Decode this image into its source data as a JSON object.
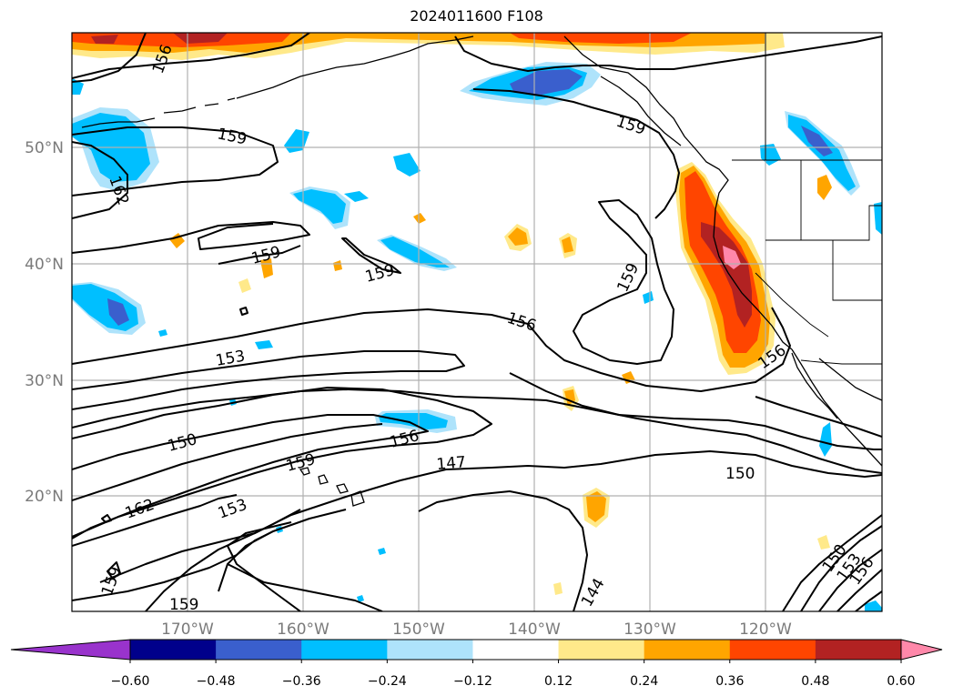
{
  "title": "2024011600 F108",
  "map": {
    "lat_labels": [
      "50°N",
      "40°N",
      "30°N",
      "20°N"
    ],
    "lon_labels": [
      "170°W",
      "160°W",
      "150°W",
      "140°W",
      "130°W",
      "120°W"
    ],
    "contour_labels": [
      "156",
      "159",
      "162",
      "159",
      "159",
      "159",
      "156",
      "153",
      "150",
      "156",
      "159",
      "147",
      "150",
      "162",
      "153",
      "159",
      "159",
      "144",
      "156",
      "150",
      "153",
      "156",
      "159"
    ]
  },
  "colorbar": {
    "labels": [
      "−0.60",
      "−0.48",
      "−0.36",
      "−0.24",
      "−0.12",
      "0.12",
      "0.24",
      "0.36",
      "0.48",
      "0.60"
    ],
    "colors": [
      "#9933cc",
      "#00008b",
      "#3a5fcd",
      "#00bfff",
      "#aee3fb",
      "#ffffff",
      "#ffe98a",
      "#ffa500",
      "#ff4500",
      "#b22222",
      "#ff88aa"
    ]
  }
}
